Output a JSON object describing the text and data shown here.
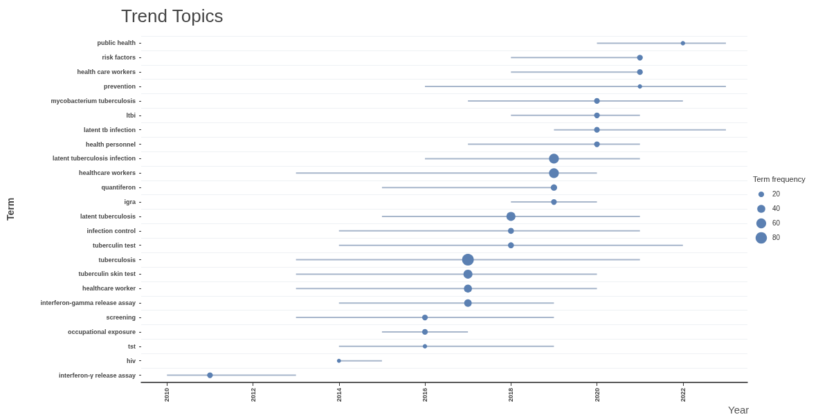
{
  "chart_data": {
    "type": "bar",
    "orientation": "horizontal",
    "title": "Trend Topics",
    "xlabel": "Year",
    "ylabel": "Term",
    "legend_title": "Term frequency",
    "grid": "y",
    "categories": [
      "public health",
      "risk factors",
      "health care workers",
      "prevention",
      "mycobacterium tuberculosis",
      "ltbi",
      "latent tb infection",
      "health personnel",
      "latent tuberculosis infection",
      "healthcare workers",
      "quantiferon",
      "igra",
      "latent tuberculosis",
      "infection control",
      "tuberculin test",
      "tuberculosis",
      "tuberculin skin test",
      "healthcare worker",
      "interferon-gamma release assay",
      "screening",
      "occupational exposure",
      "tst",
      "hiv",
      "interferon-γ release assay"
    ],
    "xlim": [
      2009.4,
      2023.5
    ],
    "xticks": [
      2010,
      2012,
      2014,
      2016,
      2018,
      2020,
      2022
    ],
    "series": [
      {
        "type": "bar",
        "color": "#a7b6cb",
        "base": [
          2020,
          2018,
          2018,
          2016,
          2017,
          2018,
          2019,
          2017,
          2016,
          2013,
          2015,
          2018,
          2015,
          2014,
          2014,
          2013,
          2013,
          2013,
          2014,
          2013,
          2015,
          2014,
          2014,
          2010
        ],
        "values": [
          3,
          3,
          3,
          7,
          5,
          3,
          4,
          4,
          5,
          7,
          4,
          2,
          6,
          7,
          8,
          8,
          7,
          7,
          5,
          6,
          2,
          5,
          1,
          3
        ]
      },
      {
        "type": "bubble",
        "color": "#5b80b2",
        "values": [
          2022,
          2021,
          2021,
          2021,
          2020,
          2020,
          2020,
          2020,
          2019,
          2019,
          2019,
          2019,
          2018,
          2018,
          2018,
          2017,
          2017,
          2017,
          2017,
          2016,
          2016,
          2016,
          2014,
          2011
        ],
        "sizes": [
          12,
          20,
          20,
          12,
          20,
          20,
          20,
          20,
          60,
          60,
          25,
          20,
          50,
          22,
          22,
          85,
          50,
          40,
          35,
          20,
          20,
          12,
          10,
          20
        ]
      }
    ],
    "size_legend": [
      20,
      40,
      60,
      80
    ]
  }
}
